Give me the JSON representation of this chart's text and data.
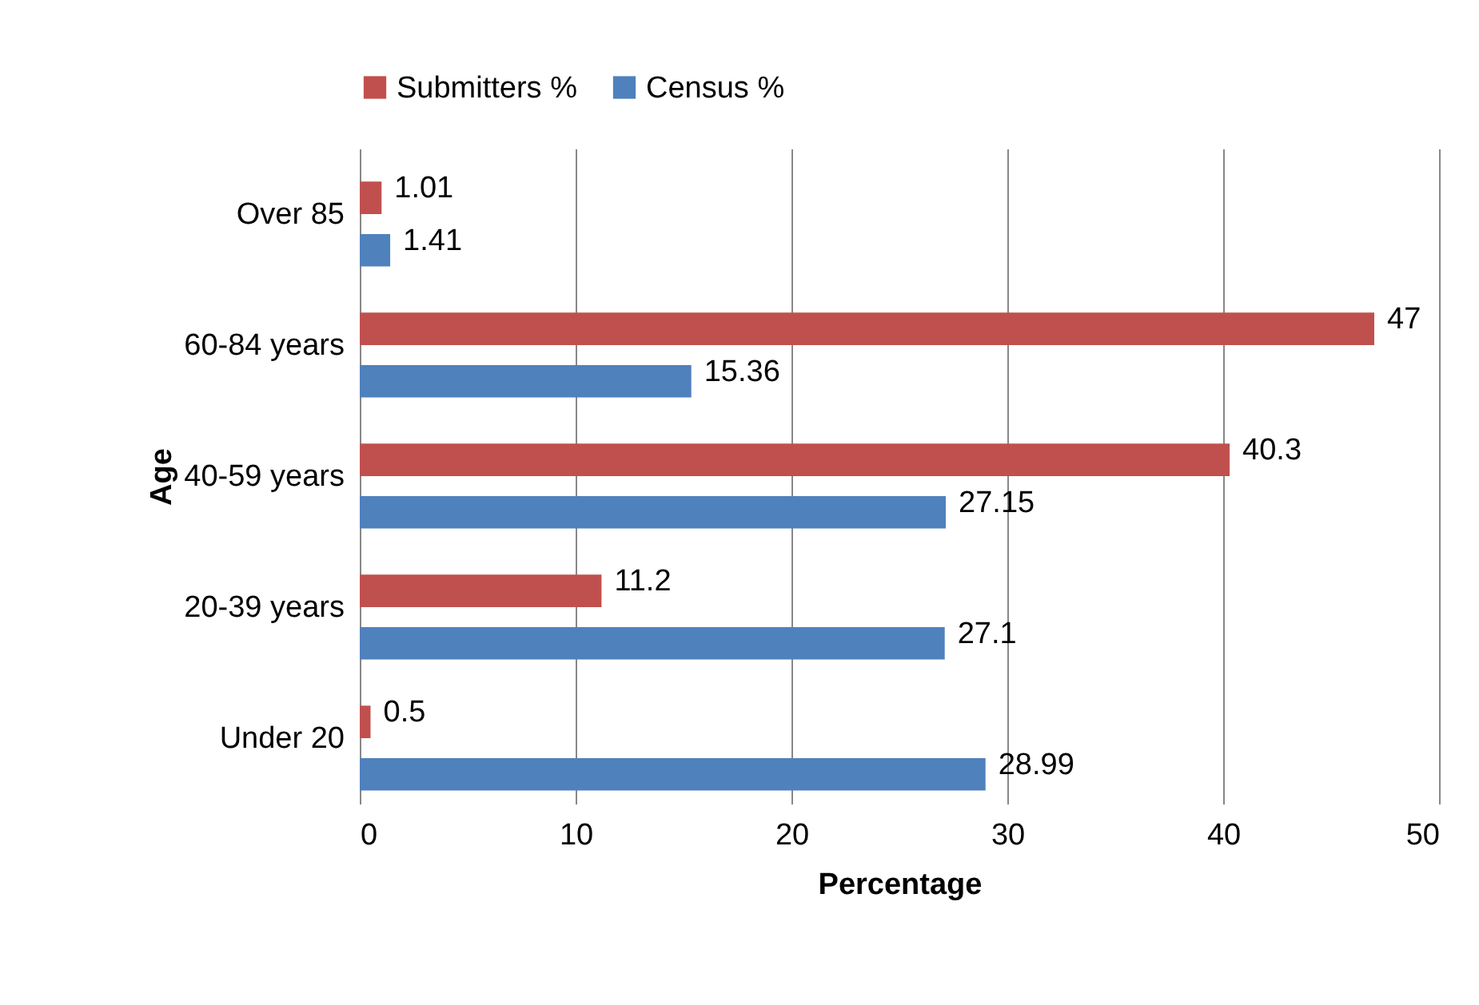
{
  "chart_data": {
    "type": "bar",
    "orientation": "horizontal",
    "xlabel": "Percentage",
    "ylabel": "Age",
    "categories": [
      "Over 85",
      "60-84 years",
      "40-59 years",
      "20-39 years",
      "Under 20"
    ],
    "series": [
      {
        "name": "Submitters %",
        "color": "#c0504d",
        "values": [
          1.01,
          47,
          40.3,
          11.2,
          0.5
        ]
      },
      {
        "name": "Census %",
        "color": "#4f81bd",
        "values": [
          1.41,
          15.36,
          27.15,
          27.1,
          28.99
        ]
      }
    ],
    "xlim": [
      0,
      50
    ],
    "xticks": [
      0,
      10,
      20,
      30,
      40,
      50
    ],
    "grid": "x",
    "legend": "top",
    "data_labels": true
  }
}
